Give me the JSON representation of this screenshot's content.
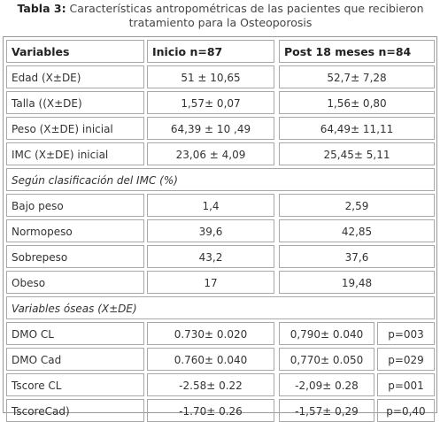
{
  "caption": {
    "label": "Tabla 3:",
    "text_line1": " Características antropométricas de las pacientes que recibieron",
    "text_line2": "tratamiento para la Osteoporosis"
  },
  "headers": {
    "variables": "Variables",
    "inicio": "Inicio n=87",
    "post": "Post 18 meses n=84"
  },
  "rows_basic": [
    {
      "label": "Edad (X±DE)",
      "inicio": "51 ± 10,65",
      "post": "52,7± 7,28"
    },
    {
      "label": "Talla ((X±DE)",
      "inicio": "1,57± 0,07",
      "post": "1,56± 0,80"
    },
    {
      "label": "Peso (X±DE) inicial",
      "inicio": "64,39 ± 10  ,49",
      "post": "64,49± 11,11"
    },
    {
      "label": "IMC (X±DE) inicial",
      "inicio": "23,06 ± 4,09",
      "post": "25,45± 5,11"
    }
  ],
  "section_imc": "Según clasificación del IMC (%)",
  "rows_imc": [
    {
      "label": "Bajo peso",
      "inicio": "1,4",
      "post": "2,59"
    },
    {
      "label": "Normopeso",
      "inicio": "39,6",
      "post": "42,85"
    },
    {
      "label": "Sobrepeso",
      "inicio": "43,2",
      "post": "37,6"
    },
    {
      "label": "Obeso",
      "inicio": "17",
      "post": "19,48"
    }
  ],
  "section_oseas": "Variables óseas  (X±DE)",
  "rows_oseas": [
    {
      "label": "DMO CL",
      "inicio": "0.730± 0.020",
      "post": "0,790± 0.040",
      "p": "p=003"
    },
    {
      "label": "DMO Cad",
      "inicio": "0.760± 0.040",
      "post": "0,770± 0.050",
      "p": "p=029"
    },
    {
      "label": "Tscore CL",
      "inicio": "-2.58± 0.22",
      "post": "-2,09± 0.28",
      "p": "p=001"
    },
    {
      "label": "TscoreCad)",
      "inicio": "-1.70± 0.26",
      "post": "-1,57± 0,29",
      "p": "p=0,40"
    }
  ]
}
